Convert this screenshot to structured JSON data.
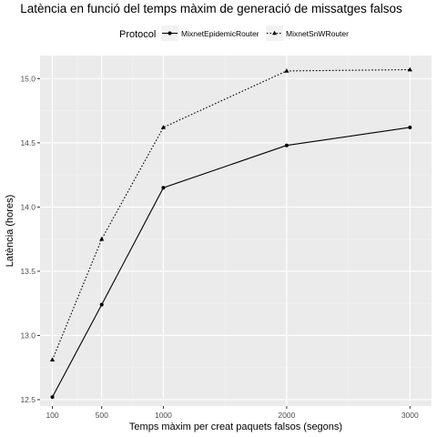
{
  "chart_data": {
    "type": "line",
    "title": "Latència en funció del temps màxim de generació de missatges falsos",
    "xlabel": "Temps màxim per creat paquets falsos (segons)",
    "ylabel": "Latència (hores)",
    "x": [
      100,
      500,
      1000,
      2000,
      3000
    ],
    "x_tick_labels": [
      "100",
      "500",
      "1000",
      "2000",
      "3000"
    ],
    "y_tick_labels": [
      "12.5",
      "13.0",
      "13.5",
      "14.0",
      "14.5",
      "15.0"
    ],
    "y_ticks": [
      12.5,
      13.0,
      13.5,
      14.0,
      14.5,
      15.0
    ],
    "xlim": [
      0,
      3175
    ],
    "ylim": [
      12.45,
      15.18
    ],
    "grid": true,
    "legend": {
      "title": "Protocol",
      "position": "top"
    },
    "series": [
      {
        "name": "MixnetEpidemicRouter",
        "values": [
          12.52,
          13.24,
          14.15,
          14.48,
          14.62
        ],
        "line_style": "solid",
        "marker": "circle",
        "color": "#000000"
      },
      {
        "name": "MixnetSnWRouter",
        "values": [
          12.81,
          13.75,
          14.62,
          15.06,
          15.07
        ],
        "line_style": "dotted",
        "marker": "triangle",
        "color": "#000000"
      }
    ]
  },
  "colors": {
    "panel_background": "#ebebeb",
    "grid_major": "#ffffff",
    "grid_minor": "#f2f2f2",
    "tick_text": "#4d4d4d"
  }
}
